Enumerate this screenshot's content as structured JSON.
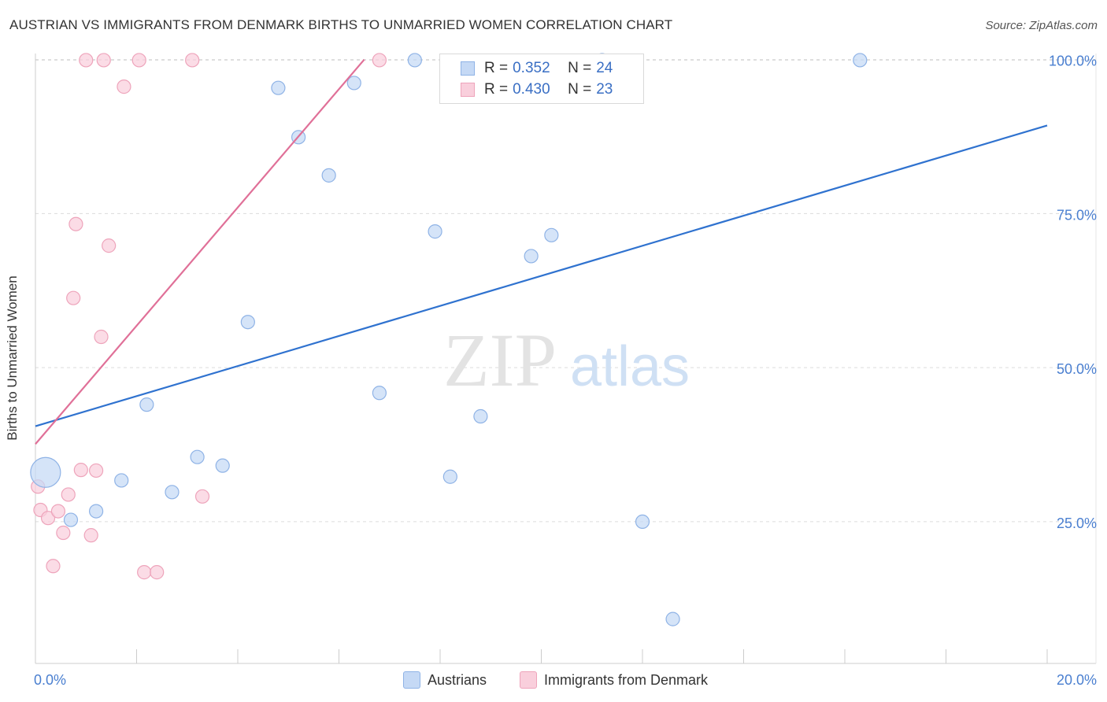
{
  "title": "AUSTRIAN VS IMMIGRANTS FROM DENMARK BIRTHS TO UNMARRIED WOMEN CORRELATION CHART",
  "source": "Source: ZipAtlas.com",
  "watermark": {
    "zip": "ZIP",
    "atlas": "atlas"
  },
  "legend": {
    "r_label": "R =",
    "n_label": "N =",
    "rows": [
      {
        "name": "Austrians",
        "r": "0.352",
        "n": "24"
      },
      {
        "name": "Immigrants from Denmark",
        "r": "0.430",
        "n": "23"
      }
    ]
  },
  "colors": {
    "austrians_fill": "#c5d9f5",
    "austrians_stroke": "#8fb3e6",
    "austrians_line": "#2f72cf",
    "denmark_fill": "#f9cfdc",
    "denmark_stroke": "#eea4bb",
    "denmark_line": "#e07098",
    "grid": "#dcdcdc",
    "tick_label": "#4a7fd0"
  },
  "chart_data": {
    "type": "scatter",
    "title": "AUSTRIAN VS IMMIGRANTS FROM DENMARK BIRTHS TO UNMARRIED WOMEN CORRELATION CHART",
    "xlabel": "",
    "ylabel": "Births to Unmarried Women",
    "xlim": [
      0,
      20
    ],
    "ylim": [
      2,
      102
    ],
    "x_tick_labels": [
      {
        "value": 0,
        "label": "0.0%"
      },
      {
        "value": 20,
        "label": "20.0%"
      }
    ],
    "y_tick_labels": [
      {
        "value": 25,
        "label": "25.0%"
      },
      {
        "value": 50,
        "label": "50.0%"
      },
      {
        "value": 75,
        "label": "75.0%"
      },
      {
        "value": 100,
        "label": "100.0%"
      }
    ],
    "y_gridlines": [
      25,
      50,
      75,
      100
    ],
    "series": [
      {
        "name": "Austrians",
        "r": 0.352,
        "n": 24,
        "points": [
          {
            "x": 0.2,
            "y": 33.0,
            "big": true
          },
          {
            "x": 0.7,
            "y": 25.3
          },
          {
            "x": 1.2,
            "y": 26.7
          },
          {
            "x": 1.7,
            "y": 31.7
          },
          {
            "x": 2.2,
            "y": 44.0
          },
          {
            "x": 2.7,
            "y": 29.8
          },
          {
            "x": 3.2,
            "y": 35.5
          },
          {
            "x": 3.7,
            "y": 34.1
          },
          {
            "x": 4.2,
            "y": 57.4
          },
          {
            "x": 4.8,
            "y": 95.4
          },
          {
            "x": 5.2,
            "y": 87.4
          },
          {
            "x": 5.8,
            "y": 81.2
          },
          {
            "x": 6.3,
            "y": 96.2
          },
          {
            "x": 6.8,
            "y": 45.9
          },
          {
            "x": 7.5,
            "y": 99.9
          },
          {
            "x": 7.9,
            "y": 72.1
          },
          {
            "x": 8.2,
            "y": 32.3
          },
          {
            "x": 8.8,
            "y": 42.1
          },
          {
            "x": 9.8,
            "y": 68.1
          },
          {
            "x": 10.2,
            "y": 71.5
          },
          {
            "x": 11.2,
            "y": 99.9
          },
          {
            "x": 12.0,
            "y": 25.0
          },
          {
            "x": 12.6,
            "y": 9.2
          },
          {
            "x": 16.3,
            "y": 99.9
          }
        ],
        "trend": {
          "x": [
            0,
            20
          ],
          "y": [
            40.5,
            89.3
          ]
        }
      },
      {
        "name": "Immigrants from Denmark",
        "r": 0.43,
        "n": 23,
        "points": [
          {
            "x": 0.05,
            "y": 30.7
          },
          {
            "x": 0.1,
            "y": 26.9
          },
          {
            "x": 0.25,
            "y": 25.6
          },
          {
            "x": 0.35,
            "y": 17.8
          },
          {
            "x": 0.45,
            "y": 26.7
          },
          {
            "x": 0.55,
            "y": 23.2
          },
          {
            "x": 0.65,
            "y": 29.4
          },
          {
            "x": 0.75,
            "y": 61.3
          },
          {
            "x": 0.8,
            "y": 73.3
          },
          {
            "x": 0.9,
            "y": 33.4
          },
          {
            "x": 1.0,
            "y": 99.9
          },
          {
            "x": 1.1,
            "y": 22.8
          },
          {
            "x": 1.2,
            "y": 33.3
          },
          {
            "x": 1.3,
            "y": 55.0
          },
          {
            "x": 1.35,
            "y": 99.9
          },
          {
            "x": 1.45,
            "y": 69.8
          },
          {
            "x": 1.75,
            "y": 95.6
          },
          {
            "x": 2.05,
            "y": 99.9
          },
          {
            "x": 2.15,
            "y": 16.8
          },
          {
            "x": 2.4,
            "y": 16.8
          },
          {
            "x": 3.1,
            "y": 99.9
          },
          {
            "x": 3.3,
            "y": 29.1
          },
          {
            "x": 6.8,
            "y": 99.9
          }
        ],
        "trend": {
          "x": [
            0,
            6.5
          ],
          "y": [
            37.6,
            100.0
          ]
        }
      }
    ]
  }
}
